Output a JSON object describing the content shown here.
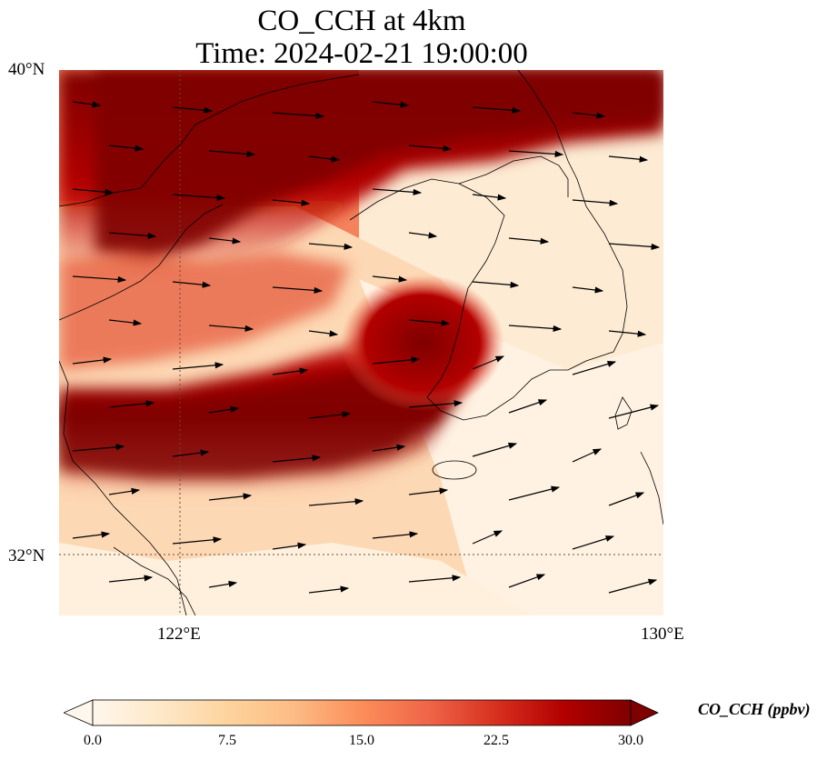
{
  "title": {
    "line1": "CO_CCH at 4km",
    "line2": "Time: 2024-02-21 19:00:00"
  },
  "map": {
    "lat_labels": [
      "40°N",
      "32°N"
    ],
    "lon_labels": [
      "122°E",
      "130°E"
    ],
    "extent": {
      "lon": [
        120,
        130
      ],
      "lat": [
        31,
        40
      ]
    },
    "gridlines_dotted": true,
    "colors": {
      "coastline": "#000000",
      "arrow": "#000000"
    }
  },
  "colorbar": {
    "label": "CO_CCH (ppbv)",
    "ticks": [
      "0.0",
      "7.5",
      "15.0",
      "22.5",
      "30.0"
    ],
    "range": [
      0,
      30
    ],
    "extend": "both",
    "colormap": [
      "#fff7ec",
      "#fee8c8",
      "#fdd49e",
      "#fdbb84",
      "#fc8d59",
      "#ef6548",
      "#d7301f",
      "#b30000",
      "#7f0000"
    ]
  },
  "chart_data": {
    "type": "heatmap",
    "variable": "CO_CCH",
    "units": "ppbv",
    "level": "4km",
    "time": "2024-02-21 19:00:00",
    "xlabel": "",
    "ylabel": "",
    "xlim": [
      120,
      130
    ],
    "ylim": [
      31,
      40
    ],
    "features": [
      {
        "region": "northern band",
        "lon": [
          120,
          130
        ],
        "lat": [
          38,
          40
        ],
        "value": 30
      },
      {
        "region": "southern band",
        "lon": [
          120,
          125
        ],
        "lat": [
          33,
          35
        ],
        "value": 30
      },
      {
        "region": "central maximum",
        "lon": [
          125,
          127
        ],
        "lat": [
          35,
          36.5
        ],
        "value": 28
      },
      {
        "region": "southeast",
        "lon": [
          127,
          130
        ],
        "lat": [
          31,
          35
        ],
        "value": 2
      }
    ],
    "wind": "westerly to west-southwesterly vectors"
  }
}
